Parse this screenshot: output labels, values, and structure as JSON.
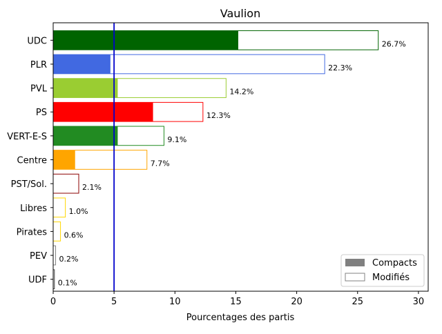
{
  "chart_data": {
    "type": "bar",
    "orientation": "horizontal",
    "title": "Vaulion",
    "xlabel": "Pourcentages des partis",
    "ylabel": "",
    "xlim": [
      0,
      30.8
    ],
    "xticks": [
      0,
      5,
      10,
      15,
      20,
      25,
      30
    ],
    "reference_line": {
      "x": 5,
      "color": "#0000cc"
    },
    "categories": [
      "UDC",
      "PLR",
      "PVL",
      "PS",
      "VERT-E-S",
      "Centre",
      "PST/Sol.",
      "Libres",
      "Pirates",
      "PEV",
      "UDF"
    ],
    "colors": [
      "#006400",
      "#4169e1",
      "#9acd32",
      "#ff0000",
      "#228b22",
      "#ffa500",
      "#8b0000",
      "#ffd700",
      "#ffd700",
      "#808080",
      "#404040"
    ],
    "series": [
      {
        "name": "Compacts",
        "values": [
          15.2,
          4.7,
          5.3,
          8.2,
          5.3,
          1.8,
          0.0,
          0.0,
          0.0,
          0.0,
          0.0
        ]
      },
      {
        "name": "Modifiés",
        "values": [
          26.7,
          22.3,
          14.2,
          12.3,
          9.1,
          7.7,
          2.1,
          1.0,
          0.6,
          0.2,
          0.1
        ]
      }
    ],
    "value_labels": [
      "26.7%",
      "22.3%",
      "14.2%",
      "12.3%",
      "9.1%",
      "7.7%",
      "2.1%",
      "1.0%",
      "0.6%",
      "0.2%",
      "0.1%"
    ],
    "legend": {
      "position": "lower-right",
      "entries": [
        {
          "label": "Compacts",
          "style": "filled",
          "color": "#808080"
        },
        {
          "label": "Modifiés",
          "style": "outline",
          "color": "#808080"
        }
      ]
    },
    "grid": false
  }
}
